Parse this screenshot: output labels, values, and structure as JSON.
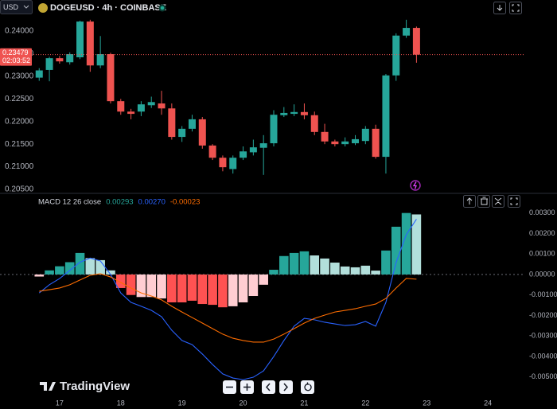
{
  "toolbar": {
    "currency": "USD"
  },
  "brand": "TradingView",
  "chart_data": [
    {
      "type": "candlestick",
      "title": "DOGEUSD · 4h · COINBASE",
      "x": [
        16.6667,
        16.8333,
        17,
        17.1667,
        17.3333,
        17.5,
        17.6667,
        17.8333,
        18,
        18.1667,
        18.3333,
        18.5,
        18.6667,
        18.8333,
        19,
        19.1667,
        19.3333,
        19.5,
        19.6667,
        19.8333,
        20,
        20.1667,
        20.3333,
        20.5,
        20.6667,
        20.8333,
        21,
        21.1667,
        21.3333,
        21.5,
        21.6667,
        21.8333,
        22,
        22.1667,
        22.3333,
        22.5,
        22.6667,
        22.8333
      ],
      "open": [
        0.2297,
        0.2314,
        0.234,
        0.2331,
        0.2342,
        0.2421,
        0.2324,
        0.2349,
        0.2245,
        0.2222,
        0.2222,
        0.2236,
        0.224,
        0.2229,
        0.2166,
        0.2184,
        0.2205,
        0.2147,
        0.212,
        0.2095,
        0.212,
        0.2132,
        0.2142,
        0.2152,
        0.2214,
        0.2217,
        0.2221,
        0.2214,
        0.2177,
        0.2156,
        0.215,
        0.2152,
        0.2157,
        0.2184,
        0.2122,
        0.2302,
        0.239,
        0.2407
      ],
      "high": [
        0.2318,
        0.2343,
        0.2345,
        0.2353,
        0.2423,
        0.2425,
        0.2389,
        0.2352,
        0.225,
        0.2228,
        0.2245,
        0.2255,
        0.2268,
        0.224,
        0.219,
        0.2215,
        0.221,
        0.215,
        0.2125,
        0.2125,
        0.2145,
        0.216,
        0.217,
        0.2225,
        0.2232,
        0.2238,
        0.224,
        0.2222,
        0.2195,
        0.216,
        0.2165,
        0.217,
        0.219,
        0.2193,
        0.2305,
        0.2395,
        0.2425,
        0.241
      ],
      "low": [
        0.229,
        0.2289,
        0.2328,
        0.2326,
        0.2338,
        0.231,
        0.2318,
        0.224,
        0.2215,
        0.2205,
        0.2212,
        0.223,
        0.2215,
        0.216,
        0.2155,
        0.2178,
        0.214,
        0.2115,
        0.209,
        0.2085,
        0.2115,
        0.2125,
        0.2082,
        0.2145,
        0.221,
        0.2212,
        0.2205,
        0.217,
        0.215,
        0.2145,
        0.2145,
        0.2148,
        0.215,
        0.2118,
        0.2085,
        0.229,
        0.2385,
        0.233
      ],
      "close": [
        0.2313,
        0.234,
        0.2333,
        0.2349,
        0.2421,
        0.2324,
        0.2349,
        0.2245,
        0.2222,
        0.2217,
        0.2238,
        0.2243,
        0.2229,
        0.2166,
        0.2184,
        0.2205,
        0.2147,
        0.212,
        0.2099,
        0.212,
        0.2134,
        0.2143,
        0.2152,
        0.2215,
        0.2219,
        0.2221,
        0.2214,
        0.2177,
        0.2156,
        0.215,
        0.2156,
        0.2161,
        0.2184,
        0.2122,
        0.2302,
        0.239,
        0.2407,
        0.23479
      ],
      "up_color": "#26a69a",
      "down_color": "#ef5350",
      "last_price": 0.23479,
      "countdown": "02:03:52",
      "xlim": [
        16.026,
        24.584
      ],
      "ylim": [
        0.2043,
        0.2437
      ],
      "yticks": [
        {
          "value": 0.205,
          "label": "0.20500"
        },
        {
          "value": 0.21,
          "label": "0.21000"
        },
        {
          "value": 0.215,
          "label": "0.21500"
        },
        {
          "value": 0.22,
          "label": "0.22000"
        },
        {
          "value": 0.225,
          "label": "0.22500"
        },
        {
          "value": 0.23,
          "label": "0.23000"
        },
        {
          "value": 0.235,
          "label": "0.23500"
        },
        {
          "value": 0.24,
          "label": "0.24000"
        }
      ],
      "grid": false
    },
    {
      "type": "macd",
      "title": "MACD 12 26 close",
      "legend_values": [
        0.00293,
        {
          "value": 0.0027,
          "label": "0.00270"
        },
        -0.00023
      ],
      "x": [
        16.6667,
        16.8333,
        17,
        17.1667,
        17.3333,
        17.5,
        17.6667,
        17.8333,
        18,
        18.1667,
        18.3333,
        18.5,
        18.6667,
        18.8333,
        19,
        19.1667,
        19.3333,
        19.5,
        19.6667,
        19.8333,
        20,
        20.1667,
        20.3333,
        20.5,
        20.6667,
        20.8333,
        21,
        21.1667,
        21.3333,
        21.5,
        21.6667,
        21.8333,
        22,
        22.1667,
        22.3333,
        22.5,
        22.6667,
        22.8333
      ],
      "series": [
        {
          "kind": "bar",
          "color": "#26a69a",
          "colors": [
            "#ffcdd2",
            "#26a69a",
            "#26a69a",
            "#26a69a",
            "#26a69a",
            "#b2dfdb",
            "#b2dfdb",
            "#b2dfdb",
            "#ff5252",
            "#ff5252",
            "#ffcdd2",
            "#ffcdd2",
            "#ffcdd2",
            "#ff5252",
            "#ff5252",
            "#ff5252",
            "#ff5252",
            "#ff5252",
            "#ff5252",
            "#ffcdd2",
            "#ffcdd2",
            "#ffcdd2",
            "#ffcdd2",
            "#26a69a",
            "#26a69a",
            "#26a69a",
            "#26a69a",
            "#b2dfdb",
            "#b2dfdb",
            "#b2dfdb",
            "#b2dfdb",
            "#b2dfdb",
            "#b2dfdb",
            "#b2dfdb",
            "#26a69a",
            "#26a69a",
            "#26a69a",
            "#b2dfdb"
          ],
          "values": [
            -0.0001,
            0.0002,
            0.0004,
            0.0006,
            0.00105,
            0.0008,
            0.0007,
            0.0002,
            -0.00066,
            -0.001,
            -0.0011,
            -0.0011,
            -0.00117,
            -0.00136,
            -0.00136,
            -0.00128,
            -0.00144,
            -0.00148,
            -0.0016,
            -0.00155,
            -0.00136,
            -0.00105,
            -0.0005,
            0.00023,
            0.0009,
            0.00105,
            0.00113,
            0.00093,
            0.00078,
            0.00058,
            0.00039,
            0.00035,
            0.00043,
            0.00019,
            0.00117,
            0.00233,
            0.003,
            0.00293
          ]
        },
        {
          "kind": "line",
          "color": "#2962ff",
          "values": [
            -0.0009,
            -0.0005,
            -0.0002,
            0.0002,
            0.0006,
            0.0008,
            0.00066,
            0,
            -0.0009,
            -0.00136,
            -0.00155,
            -0.00175,
            -0.00206,
            -0.00272,
            -0.00322,
            -0.00342,
            -0.00388,
            -0.00439,
            -0.00485,
            -0.00505,
            -0.00513,
            -0.00501,
            -0.0047,
            -0.004,
            -0.00322,
            -0.00252,
            -0.00214,
            -0.00221,
            -0.00233,
            -0.00241,
            -0.00249,
            -0.00245,
            -0.00229,
            -0.00252,
            -0.00136,
            0.00058,
            0.00194,
            0.0027
          ]
        },
        {
          "kind": "line",
          "color": "#ff6d00",
          "values": [
            -0.00082,
            -0.00074,
            -0.00066,
            -0.0005,
            -0.00027,
            -4e-05,
            4e-05,
            -0.00012,
            -0.00039,
            -0.00066,
            -0.0009,
            -0.00105,
            -0.00124,
            -0.00155,
            -0.00183,
            -0.0021,
            -0.00237,
            -0.00264,
            -0.00291,
            -0.00311,
            -0.00322,
            -0.0033,
            -0.0033,
            -0.00315,
            -0.00291,
            -0.00264,
            -0.00237,
            -0.00214,
            -0.00198,
            -0.00183,
            -0.00175,
            -0.00167,
            -0.00155,
            -0.00144,
            -0.00117,
            -0.00066,
            -0.00019,
            -0.00023
          ]
        }
      ],
      "xlim": [
        16.026,
        24.584
      ],
      "xticks": [
        17,
        18,
        19,
        20,
        21,
        22,
        23,
        24
      ],
      "ylim": [
        -0.00563,
        0.00388
      ],
      "yticks": [
        {
          "value": 0.003,
          "label": "0.00300"
        },
        {
          "value": 0.002,
          "label": "0.00200"
        },
        {
          "value": 0.001,
          "label": "0.00100"
        },
        {
          "value": 0,
          "label": "0.00000"
        },
        {
          "value": -0.001,
          "label": "-0.00100"
        },
        {
          "value": -0.002,
          "label": "-0.00200"
        },
        {
          "value": -0.003,
          "label": "-0.00300"
        },
        {
          "value": -0.004,
          "label": "-0.00400"
        },
        {
          "value": -0.005,
          "label": "-0.00500"
        }
      ],
      "grid": false
    }
  ]
}
